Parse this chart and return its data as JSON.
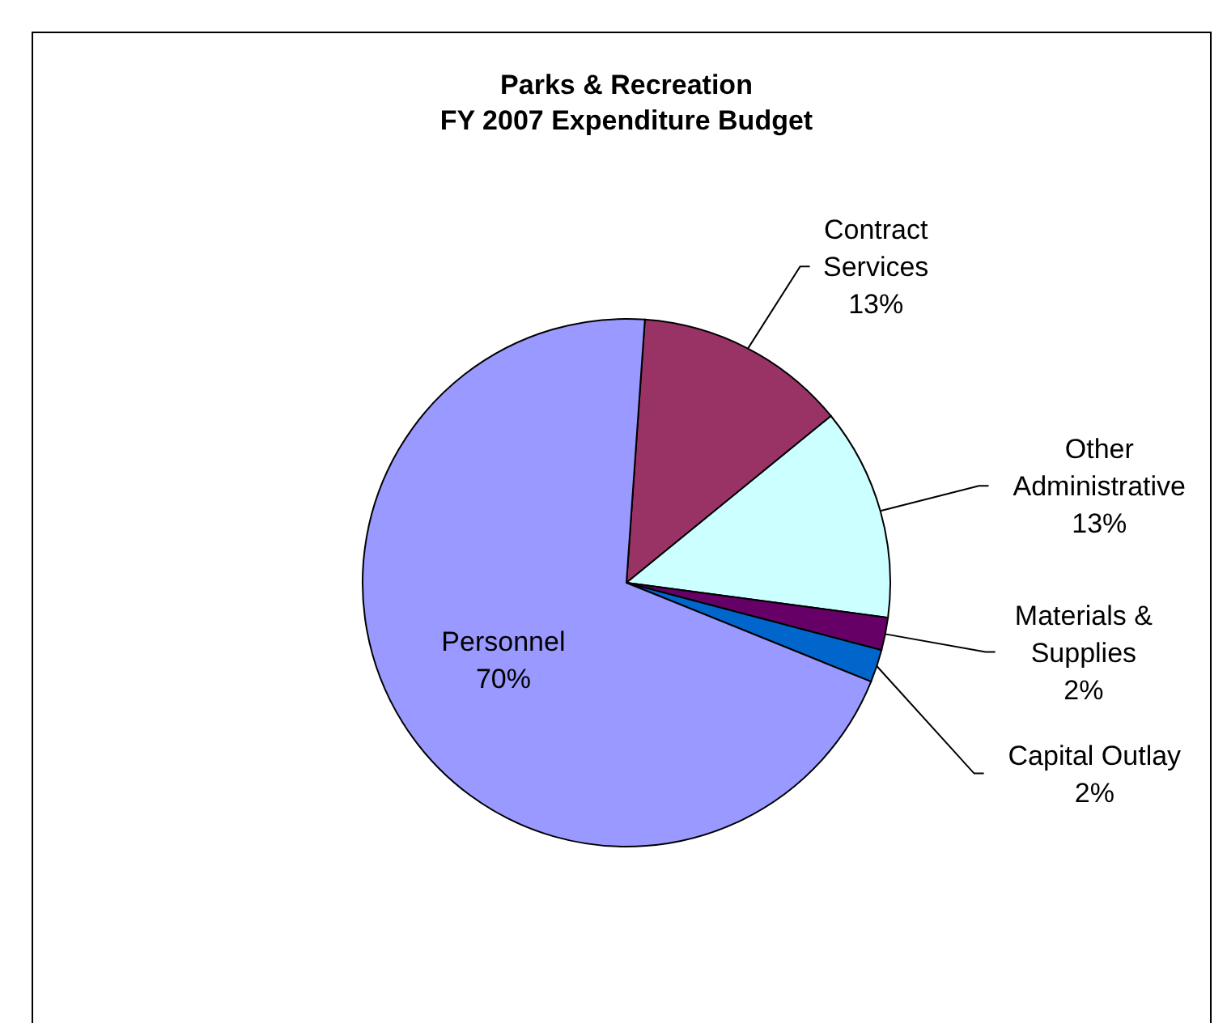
{
  "chart_data": {
    "type": "pie",
    "title": "Parks & Recreation\nFY 2007 Expenditure Budget",
    "categories": [
      "Contract Services",
      "Other Administrative",
      "Materials & Supplies",
      "Capital Outlay",
      "Personnel"
    ],
    "values": [
      13,
      13,
      2,
      2,
      70
    ],
    "colors": [
      "#993366",
      "#ccffff",
      "#660066",
      "#0066cc",
      "#9999ff"
    ],
    "value_labels": [
      "13%",
      "13%",
      "2%",
      "2%",
      "70%"
    ]
  }
}
